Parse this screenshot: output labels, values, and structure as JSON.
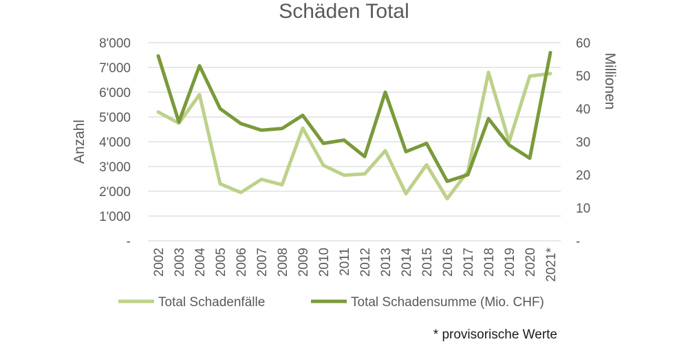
{
  "chart_data": {
    "type": "line",
    "title": "Schäden Total",
    "ylabel": "Anzahl",
    "y2label": "Millionen",
    "ylim": [
      0,
      8000
    ],
    "y2lim": [
      0,
      60
    ],
    "yticks": [
      "-",
      "1'000",
      "2'000",
      "3'000",
      "4'000",
      "5'000",
      "6'000",
      "7'000",
      "8'000"
    ],
    "y2ticks": [
      "-",
      "10",
      "20",
      "30",
      "40",
      "50",
      "60"
    ],
    "categories": [
      "2002",
      "2003",
      "2004",
      "2005",
      "2006",
      "2007",
      "2008",
      "2009",
      "2010",
      "2011",
      "2012",
      "2013",
      "2014",
      "2015",
      "2016",
      "2017",
      "2018",
      "2019",
      "2020",
      "2021*"
    ],
    "grid": true,
    "legend_position": "bottom",
    "series": [
      {
        "name": "Total Schadenfälle",
        "axis": "left",
        "color": "#bdd18a",
        "values": [
          5200,
          4750,
          5900,
          2300,
          1950,
          2480,
          2260,
          4550,
          3050,
          2650,
          2700,
          3640,
          1900,
          3070,
          1700,
          2800,
          6800,
          4000,
          6650,
          6750
        ]
      },
      {
        "name": "Total Schadensumme (Mio. CHF)",
        "axis": "right",
        "color": "#7a9a3a",
        "values": [
          56,
          36,
          53,
          40,
          35.5,
          33.5,
          34,
          38,
          29.5,
          30.5,
          25.5,
          45,
          27,
          29.5,
          18,
          20,
          37,
          29,
          25,
          57
        ]
      }
    ],
    "footnote": "* provisorische Werte"
  }
}
